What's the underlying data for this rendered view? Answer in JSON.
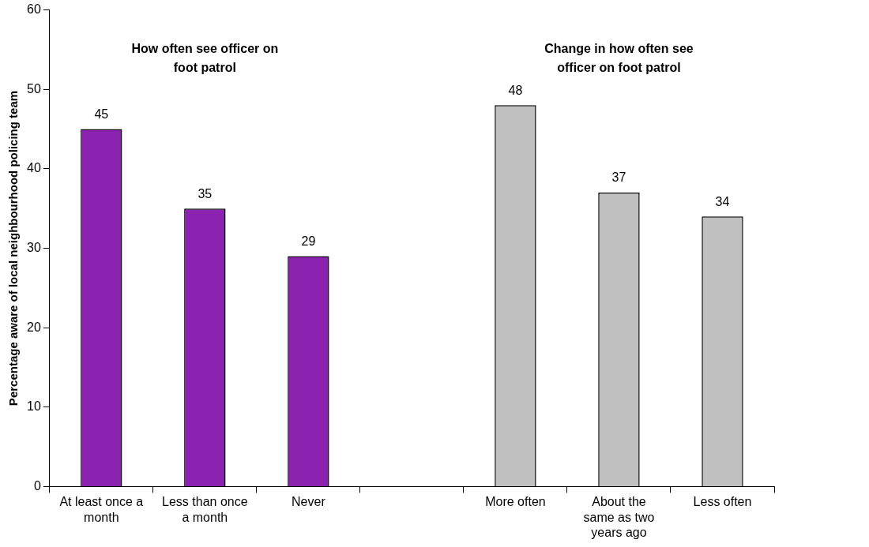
{
  "chart_data": {
    "type": "bar",
    "ylabel": "Percentage aware of local neighbourhood policing team",
    "categories": [
      "At least once a month",
      "Less than once a month",
      "Never",
      null,
      "More often",
      "About the same as two years ago",
      "Less often"
    ],
    "values": [
      45,
      35,
      29,
      null,
      48,
      37,
      34
    ],
    "colors": [
      "#8b22b0",
      "#8b22b0",
      "#8b22b0",
      null,
      "#c0c0c0",
      "#c0c0c0",
      "#c0c0c0"
    ],
    "ylim": [
      0,
      60
    ],
    "yticks": [
      0,
      10,
      20,
      30,
      40,
      50,
      60
    ],
    "data_labels": true,
    "annotations": [
      "How often see officer on foot patrol",
      "Change in how often see officer on foot patrol"
    ]
  }
}
